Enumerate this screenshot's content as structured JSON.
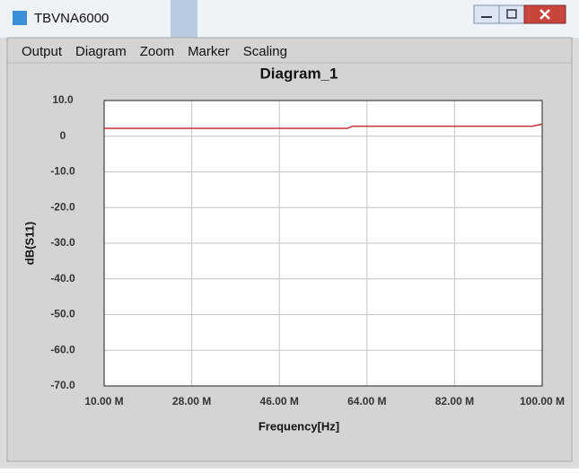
{
  "window": {
    "title": "TBVNA6000"
  },
  "menu": [
    "Output",
    "Diagram",
    "Zoom",
    "Marker",
    "Scaling"
  ],
  "chart_data": {
    "type": "line",
    "title": "Diagram_1",
    "x_label": "Frequency[Hz]",
    "y_label": "dB(S11)",
    "xlim": [
      10000000,
      100000000
    ],
    "xticks": [
      {
        "value": 10000000,
        "label": "10.00 M"
      },
      {
        "value": 28000000,
        "label": "28.00 M"
      },
      {
        "value": 46000000,
        "label": "46.00 M"
      },
      {
        "value": 64000000,
        "label": "64.00 M"
      },
      {
        "value": 82000000,
        "label": "82.00 M"
      },
      {
        "value": 100000000,
        "label": "100.00 M"
      }
    ],
    "ylim": [
      -70,
      10
    ],
    "yticks": [
      {
        "value": 10,
        "label": "10.0"
      },
      0,
      {
        "value": -10,
        "label": "-10.0"
      },
      {
        "value": -20,
        "label": "-20.0"
      },
      {
        "value": -30,
        "label": "-30.0"
      },
      {
        "value": -40,
        "label": "-40.0"
      },
      {
        "value": -50,
        "label": "-50.0"
      },
      {
        "value": -60,
        "label": "-60.0"
      },
      {
        "value": -70,
        "label": "-70.0"
      }
    ],
    "grid": true,
    "series": [
      {
        "name": "S11",
        "color": "#c8303a",
        "x": [
          10000000,
          60000000,
          61000000,
          98000000,
          100000000
        ],
        "values": [
          2.2,
          2.2,
          2.8,
          2.8,
          3.4
        ]
      }
    ]
  }
}
